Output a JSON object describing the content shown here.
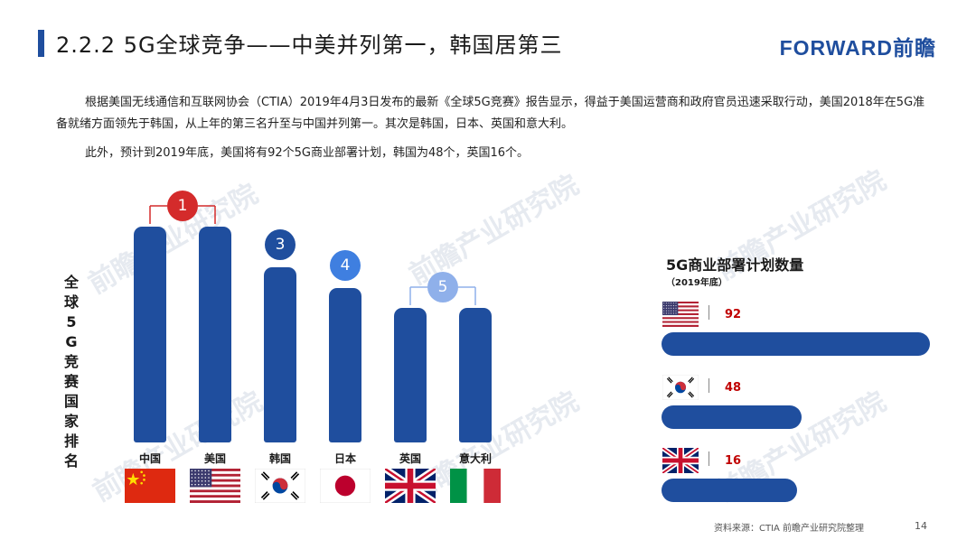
{
  "header": {
    "title": "2.2.2 5G全球竞争——中美并列第一，韩国居第三",
    "brand": "FORWARD前瞻"
  },
  "body": {
    "paragraph1": "根据美国无线通信和互联网协会（CTIA）2019年4月3日发布的最新《全球5G竞赛》报告显示，得益于美国运营商和政府官员迅速采取行动，美国2018年在5G准备就绪方面领先于韩国，从上年的第三名升至与中国并列第一。其次是韩国，日本、英国和意大利。",
    "paragraph2": "此外，预计到2019年底，美国将有92个5G商业部署计划，韩国为48个，英国16个。"
  },
  "watermark": "前瞻产业研究院",
  "chart_data": [
    {
      "type": "bar",
      "ylabel": "全球5G竞赛国家排名",
      "categories": [
        "中国",
        "美国",
        "韩国",
        "日本",
        "英国",
        "意大利"
      ],
      "ranks": [
        1,
        1,
        3,
        4,
        5,
        5
      ],
      "badges": [
        {
          "label": "1",
          "color": "#d42b2b"
        },
        {
          "label": "3",
          "color": "#1f4e9e"
        },
        {
          "label": "4",
          "color": "#3f7fe0"
        },
        {
          "label": "5",
          "color": "#8fb0ea"
        }
      ],
      "bar_color": "#1f4e9e",
      "flags": [
        "china-flag-icon",
        "usa-flag-icon",
        "korea-flag-icon",
        "japan-flag-icon",
        "uk-flag-icon",
        "italy-flag-icon"
      ]
    },
    {
      "type": "bar",
      "orientation": "horizontal",
      "title": "5G商业部署计划数量",
      "subtitle": "（2019年底）",
      "categories": [
        "美国",
        "韩国",
        "英国"
      ],
      "values": [
        92,
        48,
        16
      ],
      "value_color": "#c00000",
      "bar_color": "#1f4e9e",
      "flags": [
        "usa-flag-icon",
        "korea-flag-icon",
        "uk-flag-icon"
      ]
    }
  ],
  "footer": {
    "source": "资料来源：CTIA 前瞻产业研究院整理",
    "page_number": "14"
  }
}
